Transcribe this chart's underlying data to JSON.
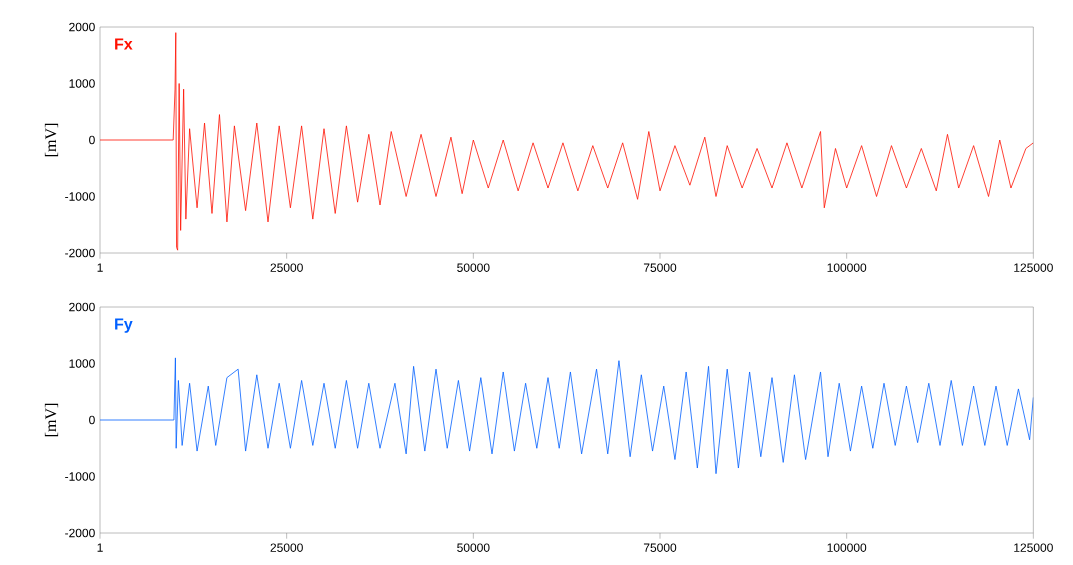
{
  "chart_data": [
    {
      "type": "line",
      "ylabel": "[mV]",
      "xlim": [
        1,
        125000
      ],
      "ylim": [
        -2000,
        2000
      ],
      "xticks": [
        1,
        25000,
        50000,
        75000,
        100000,
        125000
      ],
      "yticks": [
        -2000,
        -1000,
        0,
        1000,
        2000
      ],
      "series": [
        {
          "name": "Fx",
          "color": "#ff1000",
          "x": [
            1,
            9800,
            10050,
            10150,
            10250,
            10400,
            10600,
            10800,
            11200,
            11500,
            12000,
            13000,
            14000,
            15000,
            16000,
            17000,
            18000,
            19500,
            21000,
            22500,
            24000,
            25500,
            27000,
            28500,
            30000,
            31500,
            33000,
            34500,
            36000,
            37500,
            39000,
            41000,
            43000,
            45000,
            47000,
            48500,
            50000,
            52000,
            54000,
            56000,
            58000,
            60000,
            62000,
            64000,
            66000,
            68000,
            70000,
            72000,
            73500,
            75000,
            77000,
            79000,
            81000,
            82500,
            84000,
            86000,
            88000,
            90000,
            92000,
            94000,
            96500,
            97000,
            98500,
            100000,
            102000,
            104000,
            106000,
            108000,
            110000,
            112000,
            113500,
            115000,
            117000,
            119000,
            120500,
            122000,
            124000,
            125000
          ],
          "values": [
            0,
            0,
            900,
            1900,
            -1900,
            -1950,
            1000,
            -1600,
            900,
            -1400,
            200,
            -1200,
            300,
            -1300,
            450,
            -1450,
            250,
            -1250,
            300,
            -1450,
            250,
            -1200,
            250,
            -1400,
            200,
            -1300,
            250,
            -1100,
            100,
            -1150,
            150,
            -1000,
            100,
            -1000,
            50,
            -950,
            0,
            -850,
            0,
            -900,
            -50,
            -850,
            -50,
            -900,
            -100,
            -850,
            -50,
            -1050,
            150,
            -900,
            -100,
            -800,
            50,
            -1000,
            -100,
            -850,
            -150,
            -850,
            -50,
            -850,
            150,
            -1200,
            -150,
            -850,
            -100,
            -1000,
            -100,
            -850,
            -150,
            -900,
            100,
            -850,
            -100,
            -1000,
            0,
            -850,
            -150,
            -50
          ]
        }
      ]
    },
    {
      "type": "line",
      "ylabel": "[mV]",
      "xlim": [
        1,
        125000
      ],
      "ylim": [
        -2000,
        2000
      ],
      "xticks": [
        1,
        25000,
        50000,
        75000,
        100000,
        125000
      ],
      "yticks": [
        -2000,
        -1000,
        0,
        1000,
        2000
      ],
      "series": [
        {
          "name": "Fy",
          "color": "#0060ff",
          "x": [
            1,
            9900,
            10100,
            10200,
            10500,
            11000,
            12000,
            13000,
            14500,
            15500,
            17000,
            18500,
            19500,
            21000,
            22500,
            24000,
            25500,
            27000,
            28500,
            30000,
            31500,
            33000,
            34500,
            36000,
            37500,
            39500,
            41000,
            42000,
            43500,
            45000,
            46500,
            48000,
            49500,
            51000,
            52500,
            54000,
            55500,
            57000,
            58500,
            60000,
            61500,
            63000,
            64500,
            66500,
            68000,
            69500,
            71000,
            72500,
            74000,
            75500,
            77000,
            78500,
            80000,
            81500,
            82500,
            84000,
            85500,
            87000,
            88500,
            90000,
            91500,
            93000,
            94500,
            96500,
            97500,
            99000,
            100500,
            102000,
            103500,
            105000,
            106500,
            108000,
            109500,
            111000,
            112500,
            114000,
            115500,
            117000,
            118500,
            120000,
            121500,
            123000,
            124500,
            125000
          ],
          "values": [
            0,
            0,
            1100,
            -500,
            700,
            -450,
            650,
            -550,
            600,
            -450,
            750,
            900,
            -550,
            800,
            -500,
            650,
            -500,
            700,
            -450,
            650,
            -500,
            700,
            -500,
            650,
            -500,
            650,
            -600,
            950,
            -550,
            900,
            -500,
            700,
            -550,
            750,
            -600,
            850,
            -550,
            650,
            -500,
            750,
            -500,
            850,
            -600,
            900,
            -600,
            1050,
            -650,
            800,
            -550,
            600,
            -700,
            850,
            -850,
            950,
            -950,
            900,
            -850,
            850,
            -650,
            750,
            -750,
            800,
            -700,
            850,
            -650,
            650,
            -550,
            600,
            -500,
            650,
            -450,
            600,
            -400,
            650,
            -450,
            700,
            -450,
            600,
            -450,
            600,
            -450,
            550,
            -350,
            400
          ]
        }
      ]
    }
  ]
}
